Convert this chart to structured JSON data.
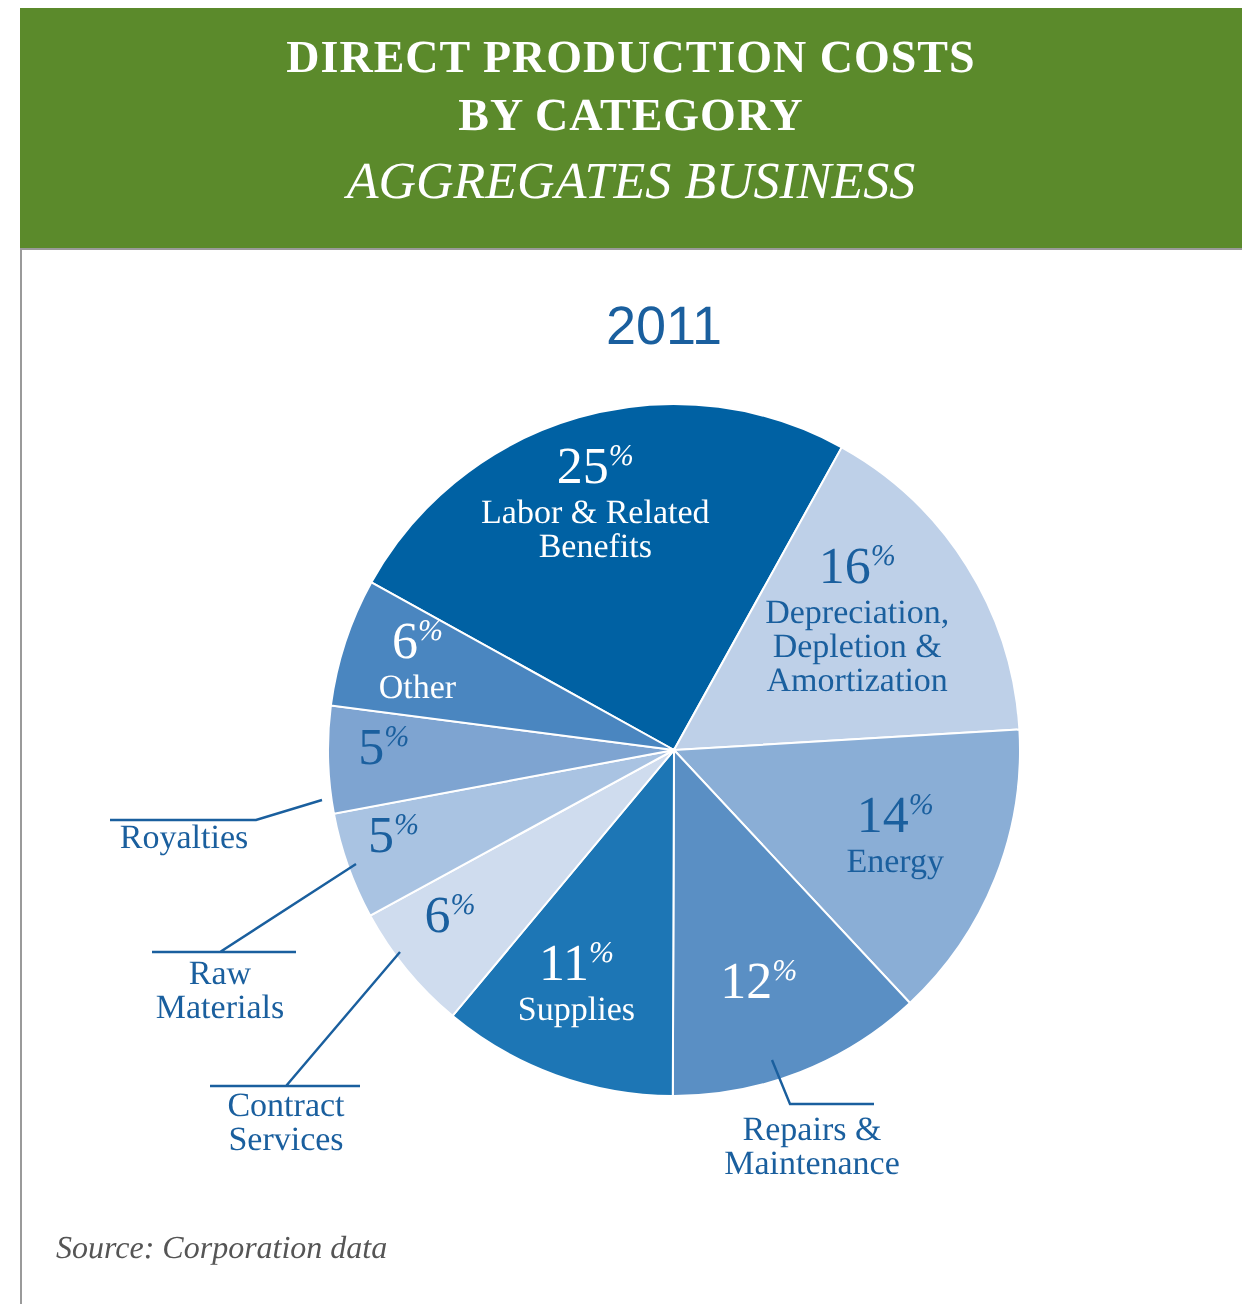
{
  "chart_data": {
    "type": "pie",
    "title": "DIRECT PRODUCTION COSTS BY CATEGORY",
    "subtitle": "AGGREGATES BUSINESS",
    "categories": [
      "Labor & Related Benefits",
      "Depreciation, Depletion & Amortization",
      "Energy",
      "Repairs & Maintenance",
      "Supplies",
      "Contract Services",
      "Raw Materials",
      "Royalties",
      "Other"
    ],
    "values": [
      25,
      16,
      14,
      12,
      11,
      6,
      5,
      5,
      6
    ],
    "colors": [
      "#0061a3",
      "#bed0e8",
      "#8aaed6",
      "#5a8fc4",
      "#1d76b5",
      "#cfdcee",
      "#a9c3e2",
      "#7ea4d1",
      "#4a86c0"
    ],
    "value_labels": [
      "25$^{%}$",
      "16$^{%}$",
      "14$^{%}$",
      "12$^{%}$",
      "11$^{%}$",
      "6$^{%}$",
      "5$^{%}$",
      "5$^{%}$",
      "6$^{%}$"
    ],
    "annotations": [
      "2011",
      "Source: Corporation data"
    ]
  }
}
